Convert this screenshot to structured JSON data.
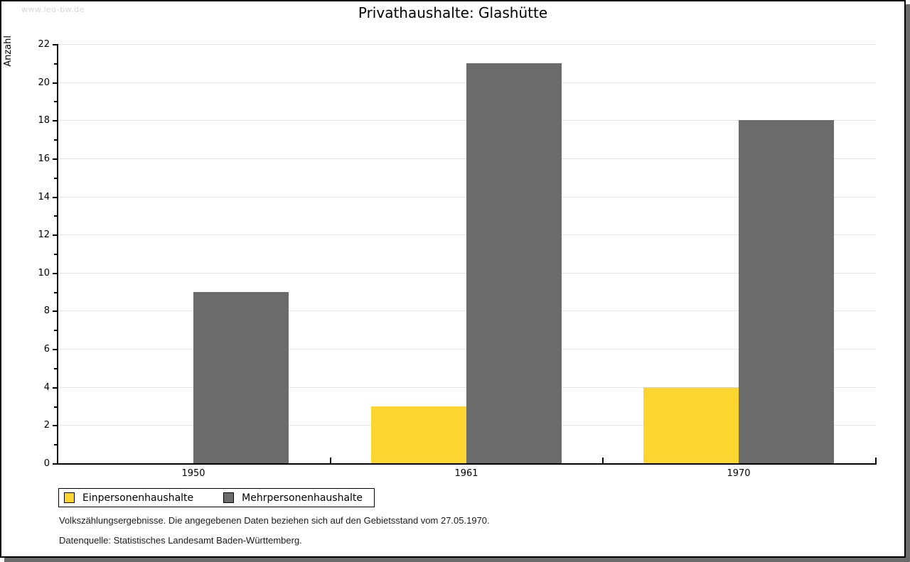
{
  "watermark": "www.leo-bw.de",
  "title": "Privathaushalte: Glashütte",
  "footnotes": [
    "Volkszählungsergebnisse. Die angegebenen Daten beziehen sich auf den Gebietsstand vom 27.05.1970.",
    "Datenquelle: Statistisches Landesamt Baden-Württemberg."
  ],
  "chart_data": {
    "type": "bar",
    "title": "Privathaushalte: Glashütte",
    "categories": [
      "1950",
      "1961",
      "1970"
    ],
    "series": [
      {
        "name": "Einpersonenhaushalte",
        "color": "#fcd530",
        "values": [
          0,
          3,
          4
        ]
      },
      {
        "name": "Mehrpersonenhaushalte",
        "color": "#6b6b6b",
        "values": [
          9,
          21,
          18
        ]
      }
    ],
    "xlabel": "",
    "ylabel": "Anzahl",
    "ylim": [
      0,
      22
    ],
    "ytick_step": 2,
    "grid": "horizontal-major",
    "legend_position": "bottom-left"
  }
}
